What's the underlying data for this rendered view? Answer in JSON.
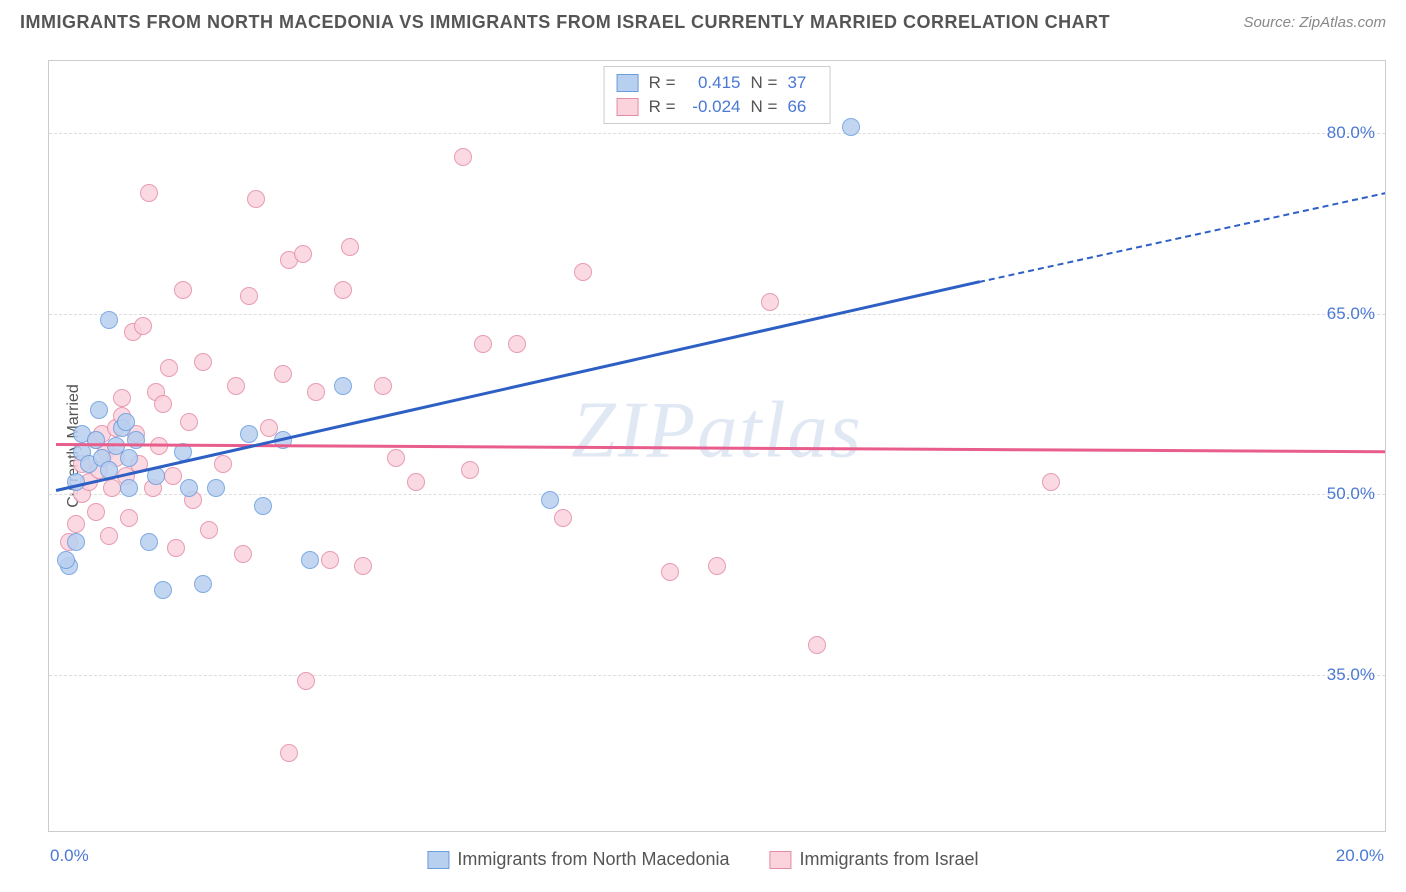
{
  "title": "IMMIGRANTS FROM NORTH MACEDONIA VS IMMIGRANTS FROM ISRAEL CURRENTLY MARRIED CORRELATION CHART",
  "source": "Source: ZipAtlas.com",
  "y_axis_label": "Currently Married",
  "watermark": "ZIPatlas",
  "chart": {
    "type": "scatter-with-regression",
    "xlim": [
      0,
      20
    ],
    "ylim": [
      22,
      86
    ],
    "x_ticks": [
      0,
      2.5,
      5,
      7.5,
      10,
      12.5,
      15,
      17.5,
      20
    ],
    "x_tick_labels": {
      "left": "0.0%",
      "right": "20.0%"
    },
    "y_gridlines": [
      35.0,
      50.0,
      65.0,
      80.0
    ],
    "y_tick_labels": [
      "35.0%",
      "50.0%",
      "65.0%",
      "80.0%"
    ],
    "grid_color": "#dddddd",
    "border_color": "#cccccc",
    "background_color": "#ffffff",
    "marker_size": 18,
    "line_width": 2.5
  },
  "series": {
    "macedonia": {
      "label": "Immigrants from North Macedonia",
      "color_fill": "#b8d0f0",
      "color_stroke": "#6a9cde",
      "line_color": "#2d5fc4",
      "R": "0.415",
      "N": "37",
      "regression_solid": {
        "x1": 0.1,
        "y1": 50.5,
        "x2": 13.9,
        "y2": 67.8
      },
      "regression_dashed": {
        "x1": 13.9,
        "y1": 67.8,
        "x2": 20.0,
        "y2": 75.2
      },
      "points": [
        {
          "x": 0.3,
          "y": 44.0
        },
        {
          "x": 0.25,
          "y": 44.5
        },
        {
          "x": 0.4,
          "y": 46.0
        },
        {
          "x": 0.4,
          "y": 51.0
        },
        {
          "x": 0.5,
          "y": 53.5
        },
        {
          "x": 0.5,
          "y": 55.0
        },
        {
          "x": 0.6,
          "y": 52.5
        },
        {
          "x": 0.7,
          "y": 54.5
        },
        {
          "x": 0.75,
          "y": 57.0
        },
        {
          "x": 0.8,
          "y": 53.0
        },
        {
          "x": 0.9,
          "y": 52.0
        },
        {
          "x": 0.9,
          "y": 64.5
        },
        {
          "x": 1.0,
          "y": 54.0
        },
        {
          "x": 1.1,
          "y": 55.5
        },
        {
          "x": 1.15,
          "y": 56.0
        },
        {
          "x": 1.2,
          "y": 50.5
        },
        {
          "x": 1.2,
          "y": 53.0
        },
        {
          "x": 1.3,
          "y": 54.5
        },
        {
          "x": 1.5,
          "y": 46.0
        },
        {
          "x": 1.6,
          "y": 51.5
        },
        {
          "x": 1.7,
          "y": 42.0
        },
        {
          "x": 2.0,
          "y": 53.5
        },
        {
          "x": 2.1,
          "y": 50.5
        },
        {
          "x": 2.3,
          "y": 42.5
        },
        {
          "x": 2.5,
          "y": 50.5
        },
        {
          "x": 3.0,
          "y": 55.0
        },
        {
          "x": 3.2,
          "y": 49.0
        },
        {
          "x": 3.5,
          "y": 54.5
        },
        {
          "x": 3.9,
          "y": 44.5
        },
        {
          "x": 4.4,
          "y": 59.0
        },
        {
          "x": 7.5,
          "y": 49.5
        },
        {
          "x": 12.0,
          "y": 80.5
        }
      ]
    },
    "israel": {
      "label": "Immigrants from Israel",
      "color_fill": "#fad3dd",
      "color_stroke": "#e48ba5",
      "line_color": "#e85d8c",
      "R": "-0.024",
      "N": "66",
      "regression_solid": {
        "x1": 0.1,
        "y1": 54.3,
        "x2": 20.0,
        "y2": 53.7
      },
      "points": [
        {
          "x": 0.3,
          "y": 46.0
        },
        {
          "x": 0.4,
          "y": 47.5
        },
        {
          "x": 0.5,
          "y": 50.0
        },
        {
          "x": 0.5,
          "y": 52.5
        },
        {
          "x": 0.6,
          "y": 51.0
        },
        {
          "x": 0.7,
          "y": 54.5
        },
        {
          "x": 0.7,
          "y": 48.5
        },
        {
          "x": 0.75,
          "y": 52.0
        },
        {
          "x": 0.8,
          "y": 55.0
        },
        {
          "x": 0.85,
          "y": 53.5
        },
        {
          "x": 0.9,
          "y": 46.5
        },
        {
          "x": 0.95,
          "y": 50.5
        },
        {
          "x": 1.0,
          "y": 55.5
        },
        {
          "x": 1.0,
          "y": 53.0
        },
        {
          "x": 1.1,
          "y": 56.5
        },
        {
          "x": 1.1,
          "y": 58.0
        },
        {
          "x": 1.15,
          "y": 51.5
        },
        {
          "x": 1.2,
          "y": 48.0
        },
        {
          "x": 1.25,
          "y": 63.5
        },
        {
          "x": 1.3,
          "y": 55.0
        },
        {
          "x": 1.35,
          "y": 52.5
        },
        {
          "x": 1.4,
          "y": 64.0
        },
        {
          "x": 1.5,
          "y": 75.0
        },
        {
          "x": 1.55,
          "y": 50.5
        },
        {
          "x": 1.6,
          "y": 58.5
        },
        {
          "x": 1.65,
          "y": 54.0
        },
        {
          "x": 1.7,
          "y": 57.5
        },
        {
          "x": 1.8,
          "y": 60.5
        },
        {
          "x": 1.85,
          "y": 51.5
        },
        {
          "x": 1.9,
          "y": 45.5
        },
        {
          "x": 2.0,
          "y": 67.0
        },
        {
          "x": 2.1,
          "y": 56.0
        },
        {
          "x": 2.15,
          "y": 49.5
        },
        {
          "x": 2.3,
          "y": 61.0
        },
        {
          "x": 2.4,
          "y": 47.0
        },
        {
          "x": 2.6,
          "y": 52.5
        },
        {
          "x": 2.8,
          "y": 59.0
        },
        {
          "x": 2.9,
          "y": 45.0
        },
        {
          "x": 3.0,
          "y": 66.5
        },
        {
          "x": 3.1,
          "y": 74.5
        },
        {
          "x": 3.3,
          "y": 55.5
        },
        {
          "x": 3.5,
          "y": 60.0
        },
        {
          "x": 3.6,
          "y": 28.5
        },
        {
          "x": 3.6,
          "y": 69.5
        },
        {
          "x": 3.8,
          "y": 70.0
        },
        {
          "x": 3.85,
          "y": 34.5
        },
        {
          "x": 4.0,
          "y": 58.5
        },
        {
          "x": 4.2,
          "y": 44.5
        },
        {
          "x": 4.4,
          "y": 67.0
        },
        {
          "x": 4.5,
          "y": 70.5
        },
        {
          "x": 4.7,
          "y": 44.0
        },
        {
          "x": 5.0,
          "y": 59.0
        },
        {
          "x": 5.2,
          "y": 53.0
        },
        {
          "x": 5.5,
          "y": 51.0
        },
        {
          "x": 6.2,
          "y": 78.0
        },
        {
          "x": 6.3,
          "y": 52.0
        },
        {
          "x": 6.5,
          "y": 62.5
        },
        {
          "x": 7.0,
          "y": 62.5
        },
        {
          "x": 7.7,
          "y": 48.0
        },
        {
          "x": 8.0,
          "y": 68.5
        },
        {
          "x": 9.3,
          "y": 43.5
        },
        {
          "x": 10.0,
          "y": 44.0
        },
        {
          "x": 10.8,
          "y": 66.0
        },
        {
          "x": 11.5,
          "y": 37.5
        },
        {
          "x": 15.0,
          "y": 51.0
        }
      ]
    }
  },
  "legend_top_labels": {
    "R": "R =",
    "N": "N ="
  }
}
